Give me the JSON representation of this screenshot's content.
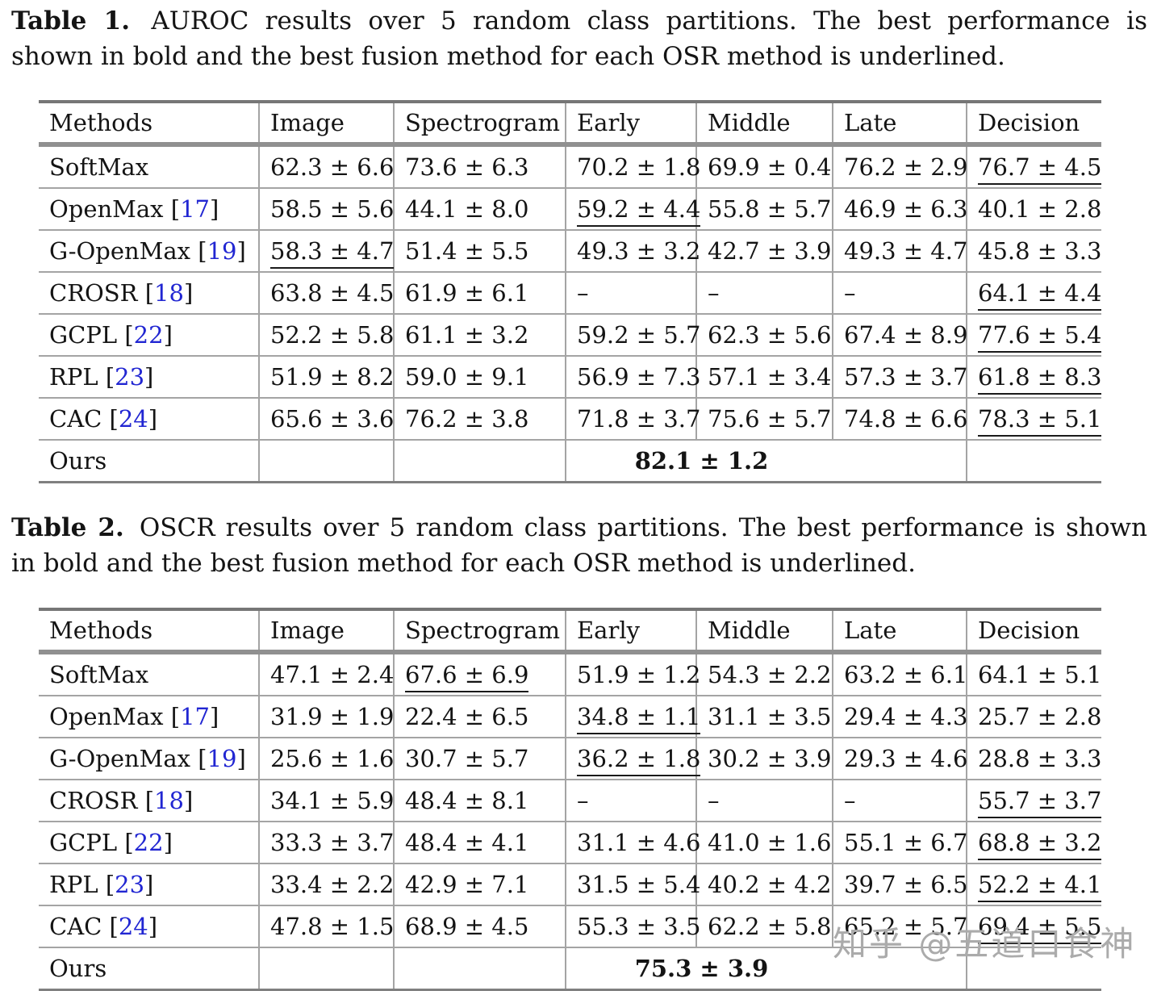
{
  "page": {
    "background": "#ffffff",
    "text_color": "#141414",
    "citation_color": "#2126d2",
    "rule_color": "#909090",
    "watermark_color": "#ababab"
  },
  "captions": [
    {
      "label": "Table 1.",
      "lines": [
        "AUROC results over 5 random class partitions. The best performance is",
        "shown in bold and the best fusion method for each OSR method is underlined."
      ]
    },
    {
      "label": "Table 2.",
      "lines": [
        "OSCR results over 5 random class partitions. The best performance is shown",
        "in bold and the best fusion method for each OSR method is underlined."
      ]
    }
  ],
  "columns": [
    "Methods",
    "Image",
    "Spectrogram",
    "Early",
    "Middle",
    "Late",
    "Decision"
  ],
  "tables": [
    {
      "name": "auroc",
      "rows": [
        {
          "method": "SoftMax",
          "ref": "",
          "cells": [
            {
              "t": "62.3 ± 6.6"
            },
            {
              "t": "73.6 ± 6.3"
            },
            {
              "t": "70.2 ± 1.8"
            },
            {
              "t": "69.9 ± 0.4"
            },
            {
              "t": "76.2 ± 2.9"
            },
            {
              "t": "76.7 ± 4.5",
              "u": true
            }
          ]
        },
        {
          "method": "OpenMax",
          "ref": "17",
          "cells": [
            {
              "t": "58.5 ± 5.6"
            },
            {
              "t": "44.1 ± 8.0"
            },
            {
              "t": "59.2 ± 4.4",
              "u": true
            },
            {
              "t": "55.8 ± 5.7"
            },
            {
              "t": "46.9 ± 6.3"
            },
            {
              "t": "40.1 ± 2.8"
            }
          ]
        },
        {
          "method": "G-OpenMax",
          "ref": "19",
          "cells": [
            {
              "t": "58.3 ± 4.7",
              "u": true
            },
            {
              "t": "51.4 ± 5.5"
            },
            {
              "t": "49.3 ± 3.2"
            },
            {
              "t": "42.7 ± 3.9"
            },
            {
              "t": "49.3 ± 4.7"
            },
            {
              "t": "45.8 ± 3.3"
            }
          ]
        },
        {
          "method": "CROSR",
          "ref": "18",
          "cells": [
            {
              "t": "63.8 ± 4.5"
            },
            {
              "t": "61.9 ± 6.1"
            },
            {
              "t": "–"
            },
            {
              "t": "–"
            },
            {
              "t": "–"
            },
            {
              "t": "64.1 ± 4.4",
              "u": true
            }
          ]
        },
        {
          "method": "GCPL",
          "ref": "22",
          "cells": [
            {
              "t": "52.2 ± 5.8"
            },
            {
              "t": "61.1 ± 3.2"
            },
            {
              "t": "59.2 ± 5.7"
            },
            {
              "t": "62.3 ± 5.6"
            },
            {
              "t": "67.4 ± 8.9"
            },
            {
              "t": "77.6 ± 5.4",
              "u": true
            }
          ]
        },
        {
          "method": "RPL",
          "ref": "23",
          "cells": [
            {
              "t": "51.9 ± 8.2"
            },
            {
              "t": "59.0 ± 9.1"
            },
            {
              "t": "56.9 ± 7.3"
            },
            {
              "t": "57.1 ± 3.4"
            },
            {
              "t": "57.3 ± 3.7"
            },
            {
              "t": "61.8 ± 8.3",
              "u": true
            }
          ]
        },
        {
          "method": "CAC",
          "ref": "24",
          "cells": [
            {
              "t": "65.6 ± 3.6"
            },
            {
              "t": "76.2 ± 3.8"
            },
            {
              "t": "71.8 ± 3.7"
            },
            {
              "t": "75.6 ± 5.7"
            },
            {
              "t": "74.8 ± 6.6"
            },
            {
              "t": "78.3 ± 5.1",
              "u": true
            }
          ]
        },
        {
          "method": "Ours",
          "ref": "",
          "cells": [
            {
              "t": ""
            },
            {
              "t": ""
            },
            {
              "t": "82.1 ± 1.2",
              "b": true,
              "span": 3
            },
            {
              "t": ""
            }
          ]
        }
      ]
    },
    {
      "name": "oscr",
      "rows": [
        {
          "method": "SoftMax",
          "ref": "",
          "cells": [
            {
              "t": "47.1 ± 2.4"
            },
            {
              "t": "67.6 ± 6.9",
              "u": true
            },
            {
              "t": "51.9 ± 1.2"
            },
            {
              "t": "54.3 ± 2.2"
            },
            {
              "t": "63.2 ± 6.1"
            },
            {
              "t": "64.1 ± 5.1"
            }
          ]
        },
        {
          "method": "OpenMax",
          "ref": "17",
          "cells": [
            {
              "t": "31.9 ± 1.9"
            },
            {
              "t": "22.4 ± 6.5"
            },
            {
              "t": "34.8 ± 1.1",
              "u": true
            },
            {
              "t": "31.1 ± 3.5"
            },
            {
              "t": "29.4 ± 4.3"
            },
            {
              "t": "25.7 ± 2.8"
            }
          ]
        },
        {
          "method": "G-OpenMax",
          "ref": "19",
          "cells": [
            {
              "t": "25.6 ± 1.6"
            },
            {
              "t": "30.7 ± 5.7"
            },
            {
              "t": "36.2 ± 1.8",
              "u": true
            },
            {
              "t": "30.2 ± 3.9"
            },
            {
              "t": "29.3 ± 4.6"
            },
            {
              "t": "28.8 ± 3.3"
            }
          ]
        },
        {
          "method": "CROSR",
          "ref": "18",
          "cells": [
            {
              "t": "34.1 ± 5.9"
            },
            {
              "t": "48.4 ± 8.1"
            },
            {
              "t": "–"
            },
            {
              "t": "–"
            },
            {
              "t": "–"
            },
            {
              "t": "55.7 ± 3.7",
              "u": true
            }
          ]
        },
        {
          "method": "GCPL",
          "ref": "22",
          "cells": [
            {
              "t": "33.3 ± 3.7"
            },
            {
              "t": "48.4 ± 4.1"
            },
            {
              "t": "31.1 ± 4.6"
            },
            {
              "t": "41.0 ± 1.6"
            },
            {
              "t": "55.1 ± 6.7"
            },
            {
              "t": "68.8 ± 3.2",
              "u": true
            }
          ]
        },
        {
          "method": "RPL",
          "ref": "23",
          "cells": [
            {
              "t": "33.4 ± 2.2"
            },
            {
              "t": "42.9 ± 7.1"
            },
            {
              "t": "31.5 ± 5.4"
            },
            {
              "t": "40.2 ± 4.2"
            },
            {
              "t": "39.7 ± 6.5"
            },
            {
              "t": "52.2 ± 4.1",
              "u": true
            }
          ]
        },
        {
          "method": "CAC",
          "ref": "24",
          "cells": [
            {
              "t": "47.8 ± 1.5"
            },
            {
              "t": "68.9 ± 4.5"
            },
            {
              "t": "55.3 ± 3.5"
            },
            {
              "t": "62.2 ± 5.8"
            },
            {
              "t": "65.2 ± 5.7"
            },
            {
              "t": "69.4 ± 5.5",
              "u": true
            }
          ]
        },
        {
          "method": "Ours",
          "ref": "",
          "cells": [
            {
              "t": ""
            },
            {
              "t": ""
            },
            {
              "t": "75.3 ± 3.9",
              "b": true,
              "span": 3
            },
            {
              "t": ""
            }
          ]
        }
      ]
    }
  ],
  "watermark": {
    "text": "知乎 @五道口食神"
  }
}
